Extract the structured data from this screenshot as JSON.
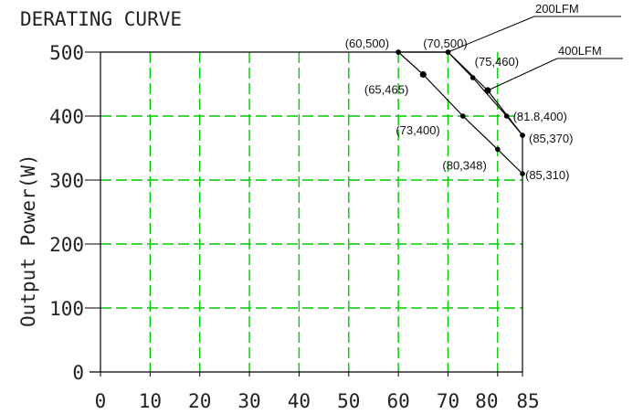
{
  "chart_data": {
    "type": "line",
    "title": "DERATING CURVE",
    "ylabel": "Output Power(W)",
    "xlabel": "",
    "xlim": [
      0,
      85
    ],
    "ylim": [
      0,
      500
    ],
    "x_ticks": [
      "0",
      "10",
      "20",
      "30",
      "40",
      "50",
      "60",
      "70",
      "80",
      "85"
    ],
    "y_ticks": [
      "0",
      "100",
      "200",
      "300",
      "400",
      "500"
    ],
    "grid": true,
    "grid_color": "#00cc00",
    "line_color": "#000000",
    "series": [
      {
        "name": "",
        "points": [
          [
            60,
            500
          ],
          [
            65,
            465
          ],
          [
            73,
            400
          ],
          [
            80,
            348
          ],
          [
            85,
            310
          ]
        ]
      },
      {
        "name": "200LFM",
        "points": [
          [
            70,
            500
          ],
          [
            75,
            460
          ],
          [
            81.8,
            400
          ],
          [
            85,
            370
          ]
        ]
      },
      {
        "name": "400LFM",
        "points": [
          [
            60,
            500
          ],
          [
            70,
            500
          ],
          [
            78,
            440
          ],
          [
            85,
            370
          ]
        ]
      }
    ],
    "point_labels": [
      {
        "text": "(60,500)",
        "x": 60,
        "y": 500
      },
      {
        "text": "(70,500)",
        "x": 70,
        "y": 500
      },
      {
        "text": "(75,460)",
        "x": 75,
        "y": 460
      },
      {
        "text": "(65,465)",
        "x": 65,
        "y": 465
      },
      {
        "text": "(81.8,400)",
        "x": 81.8,
        "y": 400
      },
      {
        "text": "(73,400)",
        "x": 73,
        "y": 400
      },
      {
        "text": "(85,370)",
        "x": 85,
        "y": 370
      },
      {
        "text": "(80,348)",
        "x": 80,
        "y": 348
      },
      {
        "text": "(85,310)",
        "x": 85,
        "y": 310
      }
    ],
    "legend_labels": [
      "200LFM",
      "400LFM"
    ]
  }
}
